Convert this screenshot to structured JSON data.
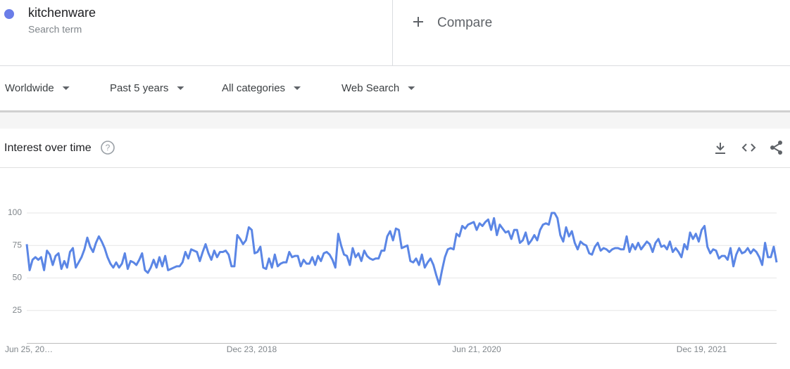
{
  "search_term": {
    "label": "kitchenware",
    "sublabel": "Search term"
  },
  "compare": "Compare",
  "filters": [
    "Worldwide",
    "Past 5 years",
    "All categories",
    "Web Search"
  ],
  "chart_data": {
    "type": "line",
    "title": "Interest over time",
    "categories": [
      "Jun 25, 20…",
      null,
      null,
      null,
      null,
      null,
      null,
      null,
      null,
      null,
      null,
      null,
      null,
      null,
      null,
      null,
      null,
      null,
      null,
      null,
      null,
      null,
      null,
      null,
      null,
      null,
      null,
      null,
      null,
      null,
      null,
      null,
      null,
      null,
      null,
      null,
      null,
      null,
      null,
      null,
      null,
      null,
      null,
      null,
      null,
      null,
      null,
      null,
      null,
      null,
      null,
      null,
      null,
      null,
      null,
      null,
      null,
      null,
      null,
      null,
      null,
      null,
      null,
      null,
      null,
      null,
      null,
      null,
      null,
      null,
      null,
      null,
      null,
      null,
      null,
      null,
      null,
      null,
      "Dec 23, 2018",
      null,
      null,
      null,
      null,
      null,
      null,
      null,
      null,
      null,
      null,
      null,
      null,
      null,
      null,
      null,
      null,
      null,
      null,
      null,
      null,
      null,
      null,
      null,
      null,
      null,
      null,
      null,
      null,
      null,
      null,
      null,
      null,
      null,
      null,
      null,
      null,
      null,
      null,
      null,
      null,
      null,
      null,
      null,
      null,
      null,
      null,
      null,
      null,
      null,
      null,
      null,
      null,
      null,
      null,
      null,
      null,
      null,
      null,
      null,
      null,
      null,
      null,
      null,
      null,
      null,
      null,
      null,
      null,
      null,
      null,
      null,
      null,
      null,
      null,
      null,
      null,
      null,
      "Jun 21, 2020",
      null,
      null,
      null,
      null,
      null,
      null,
      null,
      null,
      null,
      null,
      null,
      null,
      null,
      null,
      null,
      null,
      null,
      null,
      null,
      null,
      null,
      null,
      null,
      null,
      null,
      null,
      null,
      null,
      null,
      null,
      null,
      null,
      null,
      null,
      null,
      null,
      null,
      null,
      null,
      null,
      null,
      null,
      null,
      null,
      null,
      null,
      null,
      null,
      null,
      null,
      null,
      null,
      null,
      null,
      null,
      null,
      null,
      null,
      null,
      null,
      null,
      null,
      null,
      null,
      null,
      null,
      null,
      null,
      null,
      null,
      null,
      null,
      null,
      null,
      null,
      null,
      null,
      "Dec 19, 2021",
      null,
      null,
      null,
      null,
      null,
      null,
      null,
      null,
      null,
      null,
      null,
      null,
      null,
      null,
      null,
      null,
      null,
      null,
      null,
      null,
      null,
      null,
      null,
      null,
      null,
      null
    ],
    "series": [
      {
        "color": "#5b86e5",
        "values": [
          76,
          56,
          64,
          66,
          64,
          66,
          56,
          71,
          68,
          60,
          67,
          69,
          57,
          63,
          58,
          70,
          73,
          58,
          62,
          66,
          72,
          81,
          74,
          70,
          77,
          82,
          78,
          73,
          66,
          61,
          58,
          62,
          58,
          61,
          69,
          57,
          63,
          62,
          60,
          64,
          69,
          56,
          54,
          58,
          64,
          58,
          66,
          59,
          67,
          56,
          57,
          58,
          59,
          59,
          62,
          70,
          65,
          72,
          71,
          70,
          63,
          70,
          76,
          69,
          64,
          71,
          66,
          70,
          70,
          71,
          68,
          59,
          59,
          83,
          80,
          76,
          79,
          89,
          87,
          69,
          70,
          74,
          58,
          57,
          65,
          58,
          68,
          59,
          61,
          62,
          62,
          70,
          66,
          67,
          67,
          59,
          64,
          61,
          61,
          66,
          60,
          67,
          63,
          69,
          70,
          68,
          64,
          58,
          84,
          75,
          68,
          67,
          60,
          73,
          66,
          69,
          63,
          71,
          67,
          65,
          64,
          65,
          65,
          71,
          71,
          82,
          86,
          79,
          88,
          87,
          73,
          74,
          75,
          63,
          62,
          65,
          60,
          68,
          58,
          62,
          65,
          60,
          52,
          45,
          56,
          66,
          72,
          73,
          72,
          84,
          82,
          90,
          88,
          91,
          92,
          93,
          87,
          92,
          90,
          93,
          95,
          87,
          96,
          83,
          91,
          88,
          85,
          86,
          80,
          87,
          87,
          77,
          79,
          85,
          76,
          79,
          83,
          79,
          87,
          91,
          92,
          91,
          100,
          100,
          96,
          83,
          78,
          89,
          82,
          86,
          77,
          72,
          78,
          76,
          75,
          69,
          68,
          74,
          77,
          71,
          73,
          72,
          70,
          72,
          73,
          73,
          72,
          72,
          82,
          70,
          76,
          72,
          77,
          72,
          75,
          78,
          76,
          70,
          77,
          80,
          74,
          75,
          72,
          78,
          70,
          73,
          70,
          66,
          76,
          72,
          85,
          80,
          84,
          78,
          87,
          90,
          74,
          69,
          72,
          71,
          65,
          67,
          67,
          64,
          73,
          59,
          68,
          73,
          69,
          70,
          73,
          69,
          72,
          70,
          66,
          60,
          77,
          66,
          66,
          74,
          62
        ]
      }
    ],
    "ylim": [
      0,
      100
    ],
    "yticks": [
      25,
      50,
      75,
      100
    ],
    "grid": true
  }
}
